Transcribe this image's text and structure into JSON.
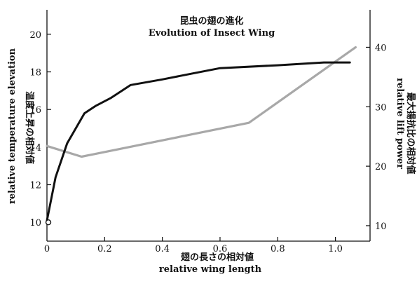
{
  "chart_data": {
    "type": "line",
    "title": "昆虫の翅の進化",
    "subtitle": "Evolution of Insect Wing",
    "xlabel": "翅の長さの相対値",
    "xlabel_en": "relative wing length",
    "ylabel_left": "温度上昇の相対値",
    "ylabel_left_en": "relative temperature elevation",
    "ylabel_right": "最大揚抗比の相対値",
    "ylabel_right_en": "relative lift power",
    "xlim": [
      0,
      1.12
    ],
    "ylim_left": [
      9,
      21.3
    ],
    "ylim_right": [
      7.4,
      46.3
    ],
    "x_ticks": [
      {
        "value": 0,
        "label": "0"
      },
      {
        "value": 0.2,
        "label": "0.2"
      },
      {
        "value": 0.4,
        "label": "0.4"
      },
      {
        "value": 0.6,
        "label": "0.6"
      },
      {
        "value": 0.8,
        "label": "0.8"
      },
      {
        "value": 1.0,
        "label": "1.0"
      }
    ],
    "y_ticks_left": [
      {
        "value": 10,
        "label": "10"
      },
      {
        "value": 12,
        "label": "12"
      },
      {
        "value": 14,
        "label": "14"
      },
      {
        "value": 16,
        "label": "16"
      },
      {
        "value": 18,
        "label": "18"
      },
      {
        "value": 20,
        "label": "20"
      }
    ],
    "y_ticks_right": [
      {
        "value": 10,
        "label": "10"
      },
      {
        "value": 20,
        "label": "20"
      },
      {
        "value": 30,
        "label": "30"
      },
      {
        "value": 40,
        "label": "40"
      }
    ],
    "grid": false,
    "series": [
      {
        "axis": "left",
        "color": "#111111",
        "points": [
          {
            "x": 0.0,
            "y": 10.1
          },
          {
            "x": 0.03,
            "y": 12.4
          },
          {
            "x": 0.07,
            "y": 14.2
          },
          {
            "x": 0.1,
            "y": 15.0
          },
          {
            "x": 0.13,
            "y": 15.8
          },
          {
            "x": 0.17,
            "y": 16.2
          },
          {
            "x": 0.22,
            "y": 16.6
          },
          {
            "x": 0.29,
            "y": 17.3
          },
          {
            "x": 0.4,
            "y": 17.6
          },
          {
            "x": 0.5,
            "y": 17.9
          },
          {
            "x": 0.6,
            "y": 18.2
          },
          {
            "x": 0.8,
            "y": 18.35
          },
          {
            "x": 0.96,
            "y": 18.5
          },
          {
            "x": 1.05,
            "y": 18.5
          }
        ],
        "marker": {
          "x": 0.0,
          "y": 10.0
        }
      },
      {
        "axis": "right",
        "color": "#a8a8a8",
        "points": [
          {
            "x": 0.0,
            "y": 23.4
          },
          {
            "x": 0.12,
            "y": 21.6
          },
          {
            "x": 0.7,
            "y": 27.3
          },
          {
            "x": 1.07,
            "y": 40.0
          }
        ]
      }
    ]
  }
}
